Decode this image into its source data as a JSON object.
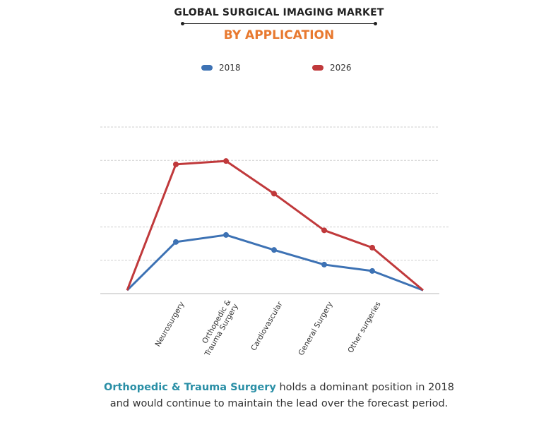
{
  "header": {
    "title": "GLOBAL SURGICAL IMAGING MARKET",
    "subtitle": "BY APPLICATION"
  },
  "footer": {
    "highlight": "Orthopedic & Trauma Surgery",
    "text_line1": " holds a dominant position in 2018",
    "text_line2": "and would continue to maintain the lead over the forecast period."
  },
  "chart_data": {
    "type": "line",
    "title": "GLOBAL SURGICAL IMAGING MARKET",
    "subtitle": "BY APPLICATION",
    "categories": [
      "",
      "Neurosurgery",
      "Orthopedic & Trauma Surgery",
      "Cardiovascular",
      "General Surgery",
      "Other surgeries",
      ""
    ],
    "series": [
      {
        "name": "2018",
        "color": "#3d72b4",
        "values": [
          0.1,
          1.55,
          1.76,
          1.31,
          0.87,
          0.68,
          0.1
        ]
      },
      {
        "name": "2026",
        "color": "#c0393b",
        "values": [
          0.1,
          3.88,
          3.98,
          3.0,
          1.9,
          1.38,
          0.1
        ]
      }
    ],
    "ylim": [
      0,
      5
    ],
    "y_axis_labels_shown": false,
    "grid": true,
    "legend_position": "top-center",
    "xlabel": "",
    "ylabel": ""
  }
}
